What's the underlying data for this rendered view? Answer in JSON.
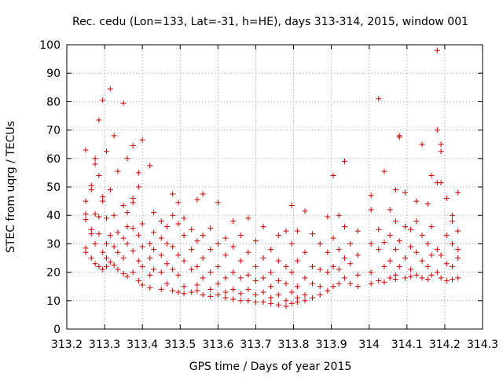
{
  "chart_data": {
    "type": "scatter",
    "title": "Rec. cedu (Lon=133, Lat=-31, h=HE), days 313-314, 2015, window 001",
    "xlabel": "GPS time / Days of year 2015",
    "ylabel": "STEC from uqrg / TECUs",
    "xlim": [
      313.2,
      314.3
    ],
    "ylim": [
      0,
      100
    ],
    "xticks": [
      "313.2",
      "313.3",
      "313.4",
      "313.5",
      "313.6",
      "313.7",
      "313.8",
      "313.9",
      "314",
      "314.1",
      "314.2",
      "314.3"
    ],
    "yticks": [
      "0",
      "10",
      "20",
      "30",
      "40",
      "50",
      "60",
      "70",
      "80",
      "90",
      "100"
    ],
    "marker": "plus",
    "color": "#cc0000",
    "grid": "dotted",
    "series": [
      {
        "points": [
          [
            313.25,
            63
          ],
          [
            313.25,
            45
          ],
          [
            313.25,
            40.5
          ],
          [
            313.25,
            38.5
          ],
          [
            313.25,
            28.5
          ],
          [
            313.25,
            27
          ],
          [
            313.265,
            50.5
          ],
          [
            313.265,
            49
          ],
          [
            313.265,
            35
          ],
          [
            313.265,
            33.5
          ],
          [
            313.265,
            25
          ],
          [
            313.275,
            60
          ],
          [
            313.275,
            58
          ],
          [
            313.275,
            40.5
          ],
          [
            313.275,
            30
          ],
          [
            313.275,
            23
          ],
          [
            313.285,
            73.5
          ],
          [
            313.285,
            54
          ],
          [
            313.285,
            39.5
          ],
          [
            313.285,
            33.5
          ],
          [
            313.285,
            22
          ],
          [
            313.295,
            80.5
          ],
          [
            313.295,
            46.5
          ],
          [
            313.295,
            45
          ],
          [
            313.295,
            27
          ],
          [
            313.295,
            21
          ],
          [
            313.305,
            62.5
          ],
          [
            313.305,
            39
          ],
          [
            313.305,
            30
          ],
          [
            313.305,
            25
          ],
          [
            313.305,
            22
          ],
          [
            313.315,
            84.5
          ],
          [
            313.315,
            49
          ],
          [
            313.315,
            33
          ],
          [
            313.315,
            23.5
          ],
          [
            313.325,
            68
          ],
          [
            313.325,
            40
          ],
          [
            313.325,
            29
          ],
          [
            313.325,
            22.5
          ],
          [
            313.335,
            55.5
          ],
          [
            313.335,
            34
          ],
          [
            313.335,
            27
          ],
          [
            313.335,
            21
          ],
          [
            313.35,
            79.5
          ],
          [
            313.35,
            43.5
          ],
          [
            313.35,
            32
          ],
          [
            313.35,
            25
          ],
          [
            313.35,
            19.5
          ],
          [
            313.36,
            60
          ],
          [
            313.36,
            41
          ],
          [
            313.36,
            36
          ],
          [
            313.36,
            30
          ],
          [
            313.36,
            18.5
          ],
          [
            313.375,
            64.5
          ],
          [
            313.375,
            46
          ],
          [
            313.375,
            44.5
          ],
          [
            313.375,
            35.5
          ],
          [
            313.375,
            27.5
          ],
          [
            313.375,
            20
          ],
          [
            313.39,
            55
          ],
          [
            313.39,
            50
          ],
          [
            313.39,
            33
          ],
          [
            313.39,
            24
          ],
          [
            313.39,
            17
          ],
          [
            313.4,
            66.5
          ],
          [
            313.4,
            37
          ],
          [
            313.4,
            29
          ],
          [
            313.4,
            22
          ],
          [
            313.4,
            15.5
          ],
          [
            313.42,
            57.5
          ],
          [
            313.42,
            30
          ],
          [
            313.42,
            25
          ],
          [
            313.42,
            19
          ],
          [
            313.42,
            14.5
          ],
          [
            313.43,
            41
          ],
          [
            313.43,
            34
          ],
          [
            313.43,
            28
          ],
          [
            313.43,
            21
          ],
          [
            313.45,
            38
          ],
          [
            313.45,
            32
          ],
          [
            313.45,
            26
          ],
          [
            313.45,
            20
          ],
          [
            313.45,
            14
          ],
          [
            313.465,
            36
          ],
          [
            313.465,
            30
          ],
          [
            313.465,
            23
          ],
          [
            313.465,
            16
          ],
          [
            313.48,
            47.5
          ],
          [
            313.48,
            40
          ],
          [
            313.48,
            29
          ],
          [
            313.48,
            21
          ],
          [
            313.48,
            13.5
          ],
          [
            313.495,
            44.5
          ],
          [
            313.495,
            37
          ],
          [
            313.495,
            26
          ],
          [
            313.495,
            19
          ],
          [
            313.495,
            13
          ],
          [
            313.51,
            39
          ],
          [
            313.51,
            33
          ],
          [
            313.51,
            24
          ],
          [
            313.51,
            15
          ],
          [
            313.51,
            12.5
          ],
          [
            313.53,
            35
          ],
          [
            313.53,
            28
          ],
          [
            313.53,
            21
          ],
          [
            313.53,
            13
          ],
          [
            313.545,
            45.5
          ],
          [
            313.545,
            31
          ],
          [
            313.545,
            22
          ],
          [
            313.545,
            15.5
          ],
          [
            313.545,
            13.5
          ],
          [
            313.56,
            47.5
          ],
          [
            313.56,
            33
          ],
          [
            313.56,
            25
          ],
          [
            313.56,
            18
          ],
          [
            313.56,
            12
          ],
          [
            313.58,
            35.5
          ],
          [
            313.58,
            28
          ],
          [
            313.58,
            20
          ],
          [
            313.58,
            14
          ],
          [
            313.58,
            11.5
          ],
          [
            313.6,
            44.5
          ],
          [
            313.6,
            30
          ],
          [
            313.6,
            22
          ],
          [
            313.6,
            16
          ],
          [
            313.6,
            12
          ],
          [
            313.62,
            32
          ],
          [
            313.62,
            26
          ],
          [
            313.62,
            18
          ],
          [
            313.62,
            13
          ],
          [
            313.62,
            11
          ],
          [
            313.64,
            38
          ],
          [
            313.64,
            29
          ],
          [
            313.64,
            20
          ],
          [
            313.64,
            14
          ],
          [
            313.64,
            10.5
          ],
          [
            313.66,
            33
          ],
          [
            313.66,
            24
          ],
          [
            313.66,
            18
          ],
          [
            313.66,
            12.5
          ],
          [
            313.66,
            10
          ],
          [
            313.68,
            39
          ],
          [
            313.68,
            27
          ],
          [
            313.68,
            19
          ],
          [
            313.68,
            14
          ],
          [
            313.68,
            10
          ],
          [
            313.7,
            31
          ],
          [
            313.7,
            22
          ],
          [
            313.7,
            17
          ],
          [
            313.7,
            12
          ],
          [
            313.7,
            9.5
          ],
          [
            313.72,
            36
          ],
          [
            313.72,
            25
          ],
          [
            313.72,
            18
          ],
          [
            313.72,
            13
          ],
          [
            313.72,
            9.5
          ],
          [
            313.74,
            28
          ],
          [
            313.74,
            20
          ],
          [
            313.74,
            15
          ],
          [
            313.74,
            11
          ],
          [
            313.74,
            9
          ],
          [
            313.76,
            33
          ],
          [
            313.76,
            24
          ],
          [
            313.76,
            17
          ],
          [
            313.76,
            12
          ],
          [
            313.76,
            8.5
          ],
          [
            313.78,
            34.5
          ],
          [
            313.78,
            22
          ],
          [
            313.78,
            16
          ],
          [
            313.78,
            10
          ],
          [
            313.78,
            8
          ],
          [
            313.795,
            43.5
          ],
          [
            313.795,
            30
          ],
          [
            313.795,
            20
          ],
          [
            313.795,
            13
          ],
          [
            313.795,
            9
          ],
          [
            313.81,
            34.5
          ],
          [
            313.81,
            24
          ],
          [
            313.81,
            15
          ],
          [
            313.81,
            11
          ],
          [
            313.81,
            9.5
          ],
          [
            313.83,
            41.5
          ],
          [
            313.83,
            27
          ],
          [
            313.83,
            18
          ],
          [
            313.83,
            12
          ],
          [
            313.83,
            10
          ],
          [
            313.85,
            33.5
          ],
          [
            313.85,
            22
          ],
          [
            313.85,
            16
          ],
          [
            313.85,
            11
          ],
          [
            313.87,
            30
          ],
          [
            313.87,
            21
          ],
          [
            313.87,
            15
          ],
          [
            313.87,
            12
          ],
          [
            313.89,
            39.5
          ],
          [
            313.89,
            27
          ],
          [
            313.89,
            20
          ],
          [
            313.89,
            13.5
          ],
          [
            313.905,
            54
          ],
          [
            313.905,
            32
          ],
          [
            313.905,
            22
          ],
          [
            313.905,
            15
          ],
          [
            313.92,
            40
          ],
          [
            313.92,
            28
          ],
          [
            313.92,
            21
          ],
          [
            313.92,
            16
          ],
          [
            313.935,
            59
          ],
          [
            313.935,
            36
          ],
          [
            313.935,
            25
          ],
          [
            313.935,
            18
          ],
          [
            313.95,
            30
          ],
          [
            313.95,
            23
          ],
          [
            313.95,
            16
          ],
          [
            313.97,
            34.5
          ],
          [
            313.97,
            26
          ],
          [
            313.97,
            19
          ],
          [
            313.97,
            15
          ],
          [
            314.005,
            47
          ],
          [
            314.005,
            42
          ],
          [
            314.005,
            30
          ],
          [
            314.005,
            20
          ],
          [
            314.005,
            16
          ],
          [
            314.025,
            81
          ],
          [
            314.025,
            35
          ],
          [
            314.025,
            28
          ],
          [
            314.025,
            17
          ],
          [
            314.04,
            55.5
          ],
          [
            314.04,
            30.5
          ],
          [
            314.04,
            22
          ],
          [
            314.04,
            16.5
          ],
          [
            314.055,
            42
          ],
          [
            314.055,
            33
          ],
          [
            314.055,
            24
          ],
          [
            314.055,
            18
          ],
          [
            314.07,
            49
          ],
          [
            314.07,
            38
          ],
          [
            314.07,
            28
          ],
          [
            314.07,
            19
          ],
          [
            314.07,
            17.5
          ],
          [
            314.08,
            68
          ],
          [
            314.08,
            67.5
          ],
          [
            314.08,
            31
          ],
          [
            314.08,
            22
          ],
          [
            314.095,
            48
          ],
          [
            314.095,
            36
          ],
          [
            314.095,
            25
          ],
          [
            314.095,
            18
          ],
          [
            314.11,
            35
          ],
          [
            314.11,
            29
          ],
          [
            314.11,
            21
          ],
          [
            314.11,
            18.5
          ],
          [
            314.125,
            45
          ],
          [
            314.125,
            38
          ],
          [
            314.125,
            27
          ],
          [
            314.125,
            19
          ],
          [
            314.14,
            65
          ],
          [
            314.14,
            33
          ],
          [
            314.14,
            24
          ],
          [
            314.14,
            18
          ],
          [
            314.155,
            44
          ],
          [
            314.155,
            30
          ],
          [
            314.155,
            22
          ],
          [
            314.155,
            17.5
          ],
          [
            314.165,
            54
          ],
          [
            314.165,
            36
          ],
          [
            314.165,
            26
          ],
          [
            314.165,
            19
          ],
          [
            314.18,
            98
          ],
          [
            314.18,
            70
          ],
          [
            314.18,
            51.5
          ],
          [
            314.18,
            28
          ],
          [
            314.18,
            20
          ],
          [
            314.19,
            65
          ],
          [
            314.19,
            62.5
          ],
          [
            314.19,
            51.5
          ],
          [
            314.19,
            26
          ],
          [
            314.19,
            18
          ],
          [
            314.205,
            46
          ],
          [
            314.205,
            33
          ],
          [
            314.205,
            23
          ],
          [
            314.205,
            17
          ],
          [
            314.22,
            40
          ],
          [
            314.22,
            38
          ],
          [
            314.22,
            30
          ],
          [
            314.22,
            22
          ],
          [
            314.22,
            17.5
          ],
          [
            314.235,
            48
          ],
          [
            314.235,
            34.5
          ],
          [
            314.235,
            28
          ],
          [
            314.235,
            25
          ],
          [
            314.235,
            18
          ]
        ]
      }
    ]
  }
}
